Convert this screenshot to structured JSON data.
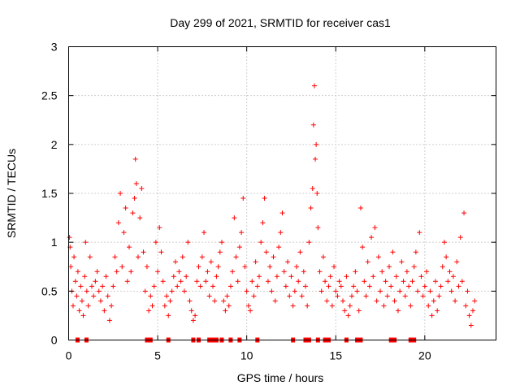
{
  "chart_data": {
    "type": "scatter",
    "title": "Day 299 of 2021, SRMTID for receiver cas1",
    "xlabel": "GPS time / hours",
    "ylabel": "SRMTID / TECUs",
    "xlim": [
      0,
      24
    ],
    "ylim": [
      0,
      3
    ],
    "x_ticks": [
      0,
      5,
      10,
      15,
      20
    ],
    "x_tick_labels": [
      "0",
      "5",
      "10",
      "15",
      "20"
    ],
    "y_ticks": [
      0,
      0.5,
      1,
      1.5,
      2,
      2.5,
      3
    ],
    "y_tick_labels": [
      "0",
      "0.5",
      "1",
      "1.5",
      "2",
      "2.5",
      "3"
    ],
    "grid": true,
    "marker": "+",
    "marker_color": "#ff0000",
    "series": [
      {
        "name": "SRMTID",
        "points": [
          [
            0.05,
            1.05
          ],
          [
            0.08,
            0.95
          ],
          [
            0.12,
            0.75
          ],
          [
            0.18,
            0.5
          ],
          [
            0.25,
            0.35
          ],
          [
            0.3,
            0.85
          ],
          [
            0.38,
            0.6
          ],
          [
            0.45,
            0.45
          ],
          [
            0.52,
            0.7
          ],
          [
            0.6,
            0.3
          ],
          [
            0.68,
            0.55
          ],
          [
            0.75,
            0.4
          ],
          [
            0.82,
            0.25
          ],
          [
            0.9,
            0.65
          ],
          [
            0.95,
            1.0
          ],
          [
            1.02,
            0.5
          ],
          [
            1.1,
            0.35
          ],
          [
            1.2,
            0.85
          ],
          [
            1.3,
            0.55
          ],
          [
            1.4,
            0.45
          ],
          [
            1.5,
            0.6
          ],
          [
            1.6,
            0.7
          ],
          [
            1.7,
            0.5
          ],
          [
            1.8,
            0.4
          ],
          [
            1.9,
            0.55
          ],
          [
            2.0,
            0.3
          ],
          [
            2.1,
            0.65
          ],
          [
            2.2,
            0.45
          ],
          [
            2.3,
            0.2
          ],
          [
            2.4,
            0.35
          ],
          [
            2.5,
            0.55
          ],
          [
            2.6,
            0.85
          ],
          [
            2.7,
            0.7
          ],
          [
            2.8,
            1.2
          ],
          [
            2.9,
            1.5
          ],
          [
            3.0,
            0.75
          ],
          [
            3.1,
            1.1
          ],
          [
            3.2,
            1.35
          ],
          [
            3.3,
            0.6
          ],
          [
            3.4,
            0.95
          ],
          [
            3.5,
            0.7
          ],
          [
            3.6,
            1.3
          ],
          [
            3.7,
            1.45
          ],
          [
            3.75,
            1.85
          ],
          [
            3.8,
            1.6
          ],
          [
            3.9,
            0.85
          ],
          [
            4.0,
            1.25
          ],
          [
            4.1,
            1.55
          ],
          [
            4.2,
            0.9
          ],
          [
            4.3,
            0.5
          ],
          [
            4.4,
            0.75
          ],
          [
            4.5,
            0.3
          ],
          [
            4.6,
            0.45
          ],
          [
            4.7,
            0.35
          ],
          [
            4.8,
            0.55
          ],
          [
            4.9,
            1.0
          ],
          [
            5.0,
            0.7
          ],
          [
            5.1,
            1.15
          ],
          [
            5.2,
            0.9
          ],
          [
            5.3,
            0.6
          ],
          [
            5.4,
            0.35
          ],
          [
            5.5,
            0.45
          ],
          [
            5.6,
            0.25
          ],
          [
            5.7,
            0.4
          ],
          [
            5.8,
            0.5
          ],
          [
            5.9,
            0.65
          ],
          [
            6.0,
            0.8
          ],
          [
            6.1,
            0.55
          ],
          [
            6.2,
            0.7
          ],
          [
            6.3,
            0.6
          ],
          [
            6.4,
            0.85
          ],
          [
            6.5,
            0.5
          ],
          [
            6.6,
            0.65
          ],
          [
            6.7,
            1.0
          ],
          [
            6.8,
            0.4
          ],
          [
            6.9,
            0.3
          ],
          [
            7.0,
            0.2
          ],
          [
            7.1,
            0.25
          ],
          [
            7.2,
            0.6
          ],
          [
            7.3,
            0.75
          ],
          [
            7.4,
            0.55
          ],
          [
            7.5,
            0.85
          ],
          [
            7.6,
            1.1
          ],
          [
            7.7,
            0.6
          ],
          [
            7.8,
            0.7
          ],
          [
            7.9,
            0.45
          ],
          [
            8.0,
            0.8
          ],
          [
            8.1,
            0.55
          ],
          [
            8.2,
            0.4
          ],
          [
            8.3,
            0.65
          ],
          [
            8.4,
            0.75
          ],
          [
            8.5,
            0.9
          ],
          [
            8.6,
            1.0
          ],
          [
            8.7,
            0.4
          ],
          [
            8.8,
            0.3
          ],
          [
            8.9,
            0.45
          ],
          [
            9.0,
            0.35
          ],
          [
            9.1,
            0.55
          ],
          [
            9.2,
            0.7
          ],
          [
            9.3,
            1.25
          ],
          [
            9.4,
            0.85
          ],
          [
            9.5,
            0.6
          ],
          [
            9.6,
            0.95
          ],
          [
            9.7,
            1.1
          ],
          [
            9.8,
            1.45
          ],
          [
            9.9,
            0.75
          ],
          [
            10.0,
            0.5
          ],
          [
            10.1,
            0.35
          ],
          [
            10.2,
            0.3
          ],
          [
            10.3,
            0.6
          ],
          [
            10.4,
            0.45
          ],
          [
            10.5,
            0.8
          ],
          [
            10.6,
            0.55
          ],
          [
            10.7,
            0.65
          ],
          [
            10.8,
            1.0
          ],
          [
            10.9,
            1.2
          ],
          [
            11.0,
            1.45
          ],
          [
            11.1,
            0.9
          ],
          [
            11.2,
            0.6
          ],
          [
            11.3,
            0.75
          ],
          [
            11.4,
            0.5
          ],
          [
            11.5,
            0.85
          ],
          [
            11.6,
            0.4
          ],
          [
            11.7,
            0.65
          ],
          [
            11.8,
            0.95
          ],
          [
            11.9,
            1.1
          ],
          [
            12.0,
            1.3
          ],
          [
            12.1,
            0.7
          ],
          [
            12.2,
            0.55
          ],
          [
            12.3,
            0.8
          ],
          [
            12.4,
            0.45
          ],
          [
            12.5,
            0.65
          ],
          [
            12.6,
            0.35
          ],
          [
            12.7,
            0.5
          ],
          [
            12.8,
            0.75
          ],
          [
            12.9,
            0.6
          ],
          [
            13.0,
            0.9
          ],
          [
            13.1,
            0.45
          ],
          [
            13.2,
            0.7
          ],
          [
            13.3,
            0.55
          ],
          [
            13.4,
            0.35
          ],
          [
            13.5,
            1.0
          ],
          [
            13.6,
            1.35
          ],
          [
            13.7,
            1.55
          ],
          [
            13.75,
            2.2
          ],
          [
            13.8,
            2.6
          ],
          [
            13.85,
            1.85
          ],
          [
            13.9,
            2.0
          ],
          [
            13.95,
            1.5
          ],
          [
            14.0,
            1.15
          ],
          [
            14.1,
            0.7
          ],
          [
            14.2,
            0.5
          ],
          [
            14.3,
            0.85
          ],
          [
            14.4,
            0.6
          ],
          [
            14.5,
            0.4
          ],
          [
            14.6,
            0.55
          ],
          [
            14.7,
            0.65
          ],
          [
            14.8,
            0.35
          ],
          [
            14.9,
            0.75
          ],
          [
            15.0,
            0.5
          ],
          [
            15.1,
            0.45
          ],
          [
            15.2,
            0.6
          ],
          [
            15.3,
            0.55
          ],
          [
            15.4,
            0.4
          ],
          [
            15.5,
            0.3
          ],
          [
            15.6,
            0.65
          ],
          [
            15.7,
            0.25
          ],
          [
            15.8,
            0.35
          ],
          [
            15.9,
            0.45
          ],
          [
            16.0,
            0.55
          ],
          [
            16.1,
            0.7
          ],
          [
            16.2,
            0.5
          ],
          [
            16.3,
            0.3
          ],
          [
            16.4,
            1.35
          ],
          [
            16.5,
            0.95
          ],
          [
            16.6,
            0.6
          ],
          [
            16.7,
            0.45
          ],
          [
            16.8,
            0.8
          ],
          [
            16.9,
            0.55
          ],
          [
            17.0,
            1.05
          ],
          [
            17.1,
            0.65
          ],
          [
            17.2,
            1.15
          ],
          [
            17.3,
            0.4
          ],
          [
            17.4,
            0.85
          ],
          [
            17.5,
            0.5
          ],
          [
            17.6,
            0.7
          ],
          [
            17.7,
            0.35
          ],
          [
            17.8,
            0.6
          ],
          [
            17.9,
            0.45
          ],
          [
            18.0,
            0.75
          ],
          [
            18.1,
            0.55
          ],
          [
            18.2,
            0.9
          ],
          [
            18.3,
            0.4
          ],
          [
            18.4,
            0.65
          ],
          [
            18.5,
            0.3
          ],
          [
            18.6,
            0.5
          ],
          [
            18.7,
            0.8
          ],
          [
            18.8,
            0.6
          ],
          [
            18.9,
            0.45
          ],
          [
            19.0,
            0.7
          ],
          [
            19.1,
            0.55
          ],
          [
            19.2,
            0.35
          ],
          [
            19.3,
            0.6
          ],
          [
            19.4,
            0.75
          ],
          [
            19.5,
            0.9
          ],
          [
            19.6,
            0.5
          ],
          [
            19.7,
            1.1
          ],
          [
            19.8,
            0.65
          ],
          [
            19.9,
            0.45
          ],
          [
            20.0,
            0.55
          ],
          [
            20.1,
            0.7
          ],
          [
            20.2,
            0.35
          ],
          [
            20.3,
            0.5
          ],
          [
            20.4,
            0.25
          ],
          [
            20.5,
            0.4
          ],
          [
            20.6,
            0.6
          ],
          [
            20.7,
            0.3
          ],
          [
            20.8,
            0.45
          ],
          [
            20.9,
            0.55
          ],
          [
            21.0,
            0.75
          ],
          [
            21.1,
            1.0
          ],
          [
            21.2,
            0.85
          ],
          [
            21.3,
            0.6
          ],
          [
            21.4,
            0.7
          ],
          [
            21.5,
            0.5
          ],
          [
            21.6,
            0.65
          ],
          [
            21.7,
            0.4
          ],
          [
            21.8,
            0.8
          ],
          [
            21.9,
            0.55
          ],
          [
            22.0,
            1.05
          ],
          [
            22.1,
            0.6
          ],
          [
            22.2,
            1.3
          ],
          [
            22.3,
            0.35
          ],
          [
            22.4,
            0.5
          ],
          [
            22.5,
            0.25
          ],
          [
            22.6,
            0.15
          ],
          [
            22.7,
            0.3
          ],
          [
            22.8,
            0.4
          ]
        ]
      },
      {
        "name": "data-gap markers",
        "points": [
          [
            0.5,
            0
          ],
          [
            1.0,
            0
          ],
          [
            4.4,
            0
          ],
          [
            4.6,
            0
          ],
          [
            5.6,
            0
          ],
          [
            7.0,
            0
          ],
          [
            7.3,
            0
          ],
          [
            7.9,
            0
          ],
          [
            8.1,
            0
          ],
          [
            8.3,
            0
          ],
          [
            8.6,
            0
          ],
          [
            9.1,
            0
          ],
          [
            9.6,
            0
          ],
          [
            10.6,
            0
          ],
          [
            12.6,
            0
          ],
          [
            13.3,
            0
          ],
          [
            13.5,
            0
          ],
          [
            14.0,
            0
          ],
          [
            14.4,
            0
          ],
          [
            14.6,
            0
          ],
          [
            15.6,
            0
          ],
          [
            16.2,
            0
          ],
          [
            16.4,
            0
          ],
          [
            18.1,
            0
          ],
          [
            18.3,
            0
          ],
          [
            19.2,
            0
          ],
          [
            19.4,
            0
          ]
        ]
      }
    ]
  }
}
